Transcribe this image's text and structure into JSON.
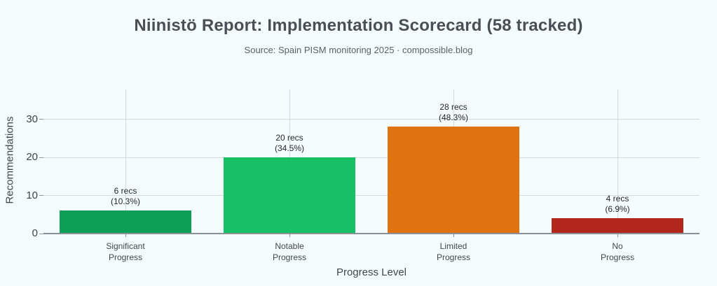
{
  "chart_data": {
    "type": "bar",
    "title": "Niinistö Report: Implementation Scorecard (58 tracked)",
    "subtitle": "Source: Spain PISM monitoring 2025 · compossible.blog",
    "xlabel": "Progress Level",
    "ylabel": "Recommendations",
    "categories": [
      "Significant Progress",
      "Notable Progress",
      "Limited Progress",
      "No Progress"
    ],
    "values": [
      6,
      20,
      28,
      4
    ],
    "bar_value_labels": [
      [
        "6 recs",
        "(10.3%)"
      ],
      [
        "20 recs",
        "(34.5%)"
      ],
      [
        "28 recs",
        "(48.3%)"
      ],
      [
        "4 recs",
        "(6.9%)"
      ]
    ],
    "bar_colors": [
      "#0d9f56",
      "#17c064",
      "#e0730f",
      "#b2271b"
    ],
    "yticks": [
      0,
      10,
      20,
      30
    ],
    "ylim": [
      0,
      37.8
    ],
    "grid": true,
    "legend": false
  },
  "theme": {
    "background": "#f5fcfe",
    "gridline_color": "#d3d9e1",
    "axis_line_color": "#8a9099",
    "tick_color": "#8d949d",
    "title_color": "#4a4e55",
    "subtitle_color": "#5a6067",
    "axis_label_color": "#41464d",
    "tick_label_color": "#3e434a",
    "value_label_color": "#25282c"
  }
}
